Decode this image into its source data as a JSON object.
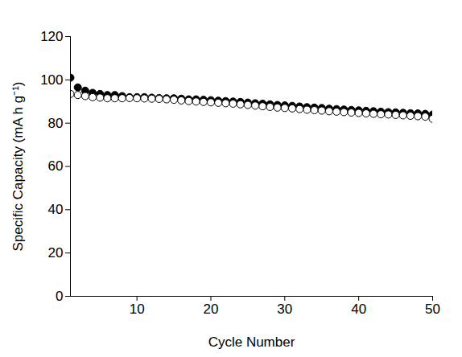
{
  "chart_data": {
    "type": "scatter",
    "xlabel": "Cycle Number",
    "ylabel": "Specific Capacity (mA h g⁻¹)",
    "x": [
      1,
      2,
      3,
      4,
      5,
      6,
      7,
      8,
      9,
      10,
      11,
      12,
      13,
      14,
      15,
      16,
      17,
      18,
      19,
      20,
      21,
      22,
      23,
      24,
      25,
      26,
      27,
      28,
      29,
      30,
      31,
      32,
      33,
      34,
      35,
      36,
      37,
      38,
      39,
      40,
      41,
      42,
      43,
      44,
      45,
      46,
      47,
      48,
      49,
      50
    ],
    "series": [
      {
        "color": "#000000",
        "marker": "circle",
        "values": [
          101,
          96.5,
          95,
          94,
          93.5,
          93,
          93,
          92.5,
          92,
          92,
          92,
          91.8,
          91.6,
          91.5,
          91.5,
          91.3,
          91,
          91,
          90.8,
          90.6,
          90.4,
          90.2,
          90,
          89.8,
          89.5,
          89.2,
          89,
          88.7,
          88.4,
          88.2,
          88,
          87.7,
          87.4,
          87.2,
          87,
          86.7,
          86.5,
          86.3,
          86.1,
          85.9,
          85.7,
          85.5,
          85.3,
          85.1,
          85,
          84.8,
          84.6,
          84.5,
          84.3,
          84
        ]
      },
      {
        "color": "#000000",
        "marker": "circle-open",
        "values": [
          93.5,
          93,
          92.5,
          92,
          91.8,
          91.5,
          91.5,
          91.5,
          91.6,
          91.5,
          91.4,
          91.3,
          91.2,
          91,
          90.8,
          90.5,
          90.2,
          90,
          89.8,
          89.6,
          89.4,
          89.2,
          89,
          88.7,
          88.4,
          88.1,
          87.8,
          87.5,
          87.2,
          87,
          86.8,
          86.5,
          86.2,
          86,
          85.8,
          85.5,
          85.3,
          85.1,
          84.9,
          84.7,
          84.5,
          84.3,
          84.1,
          84,
          83.8,
          83.6,
          83.4,
          83.2,
          83,
          82
        ]
      }
    ],
    "xlim": [
      1,
      50
    ],
    "xticks": [
      10,
      20,
      30,
      40,
      50
    ],
    "ylim": [
      0,
      120
    ],
    "yticks": [
      0,
      20,
      40,
      60,
      80,
      100,
      120
    ],
    "grid": false
  }
}
